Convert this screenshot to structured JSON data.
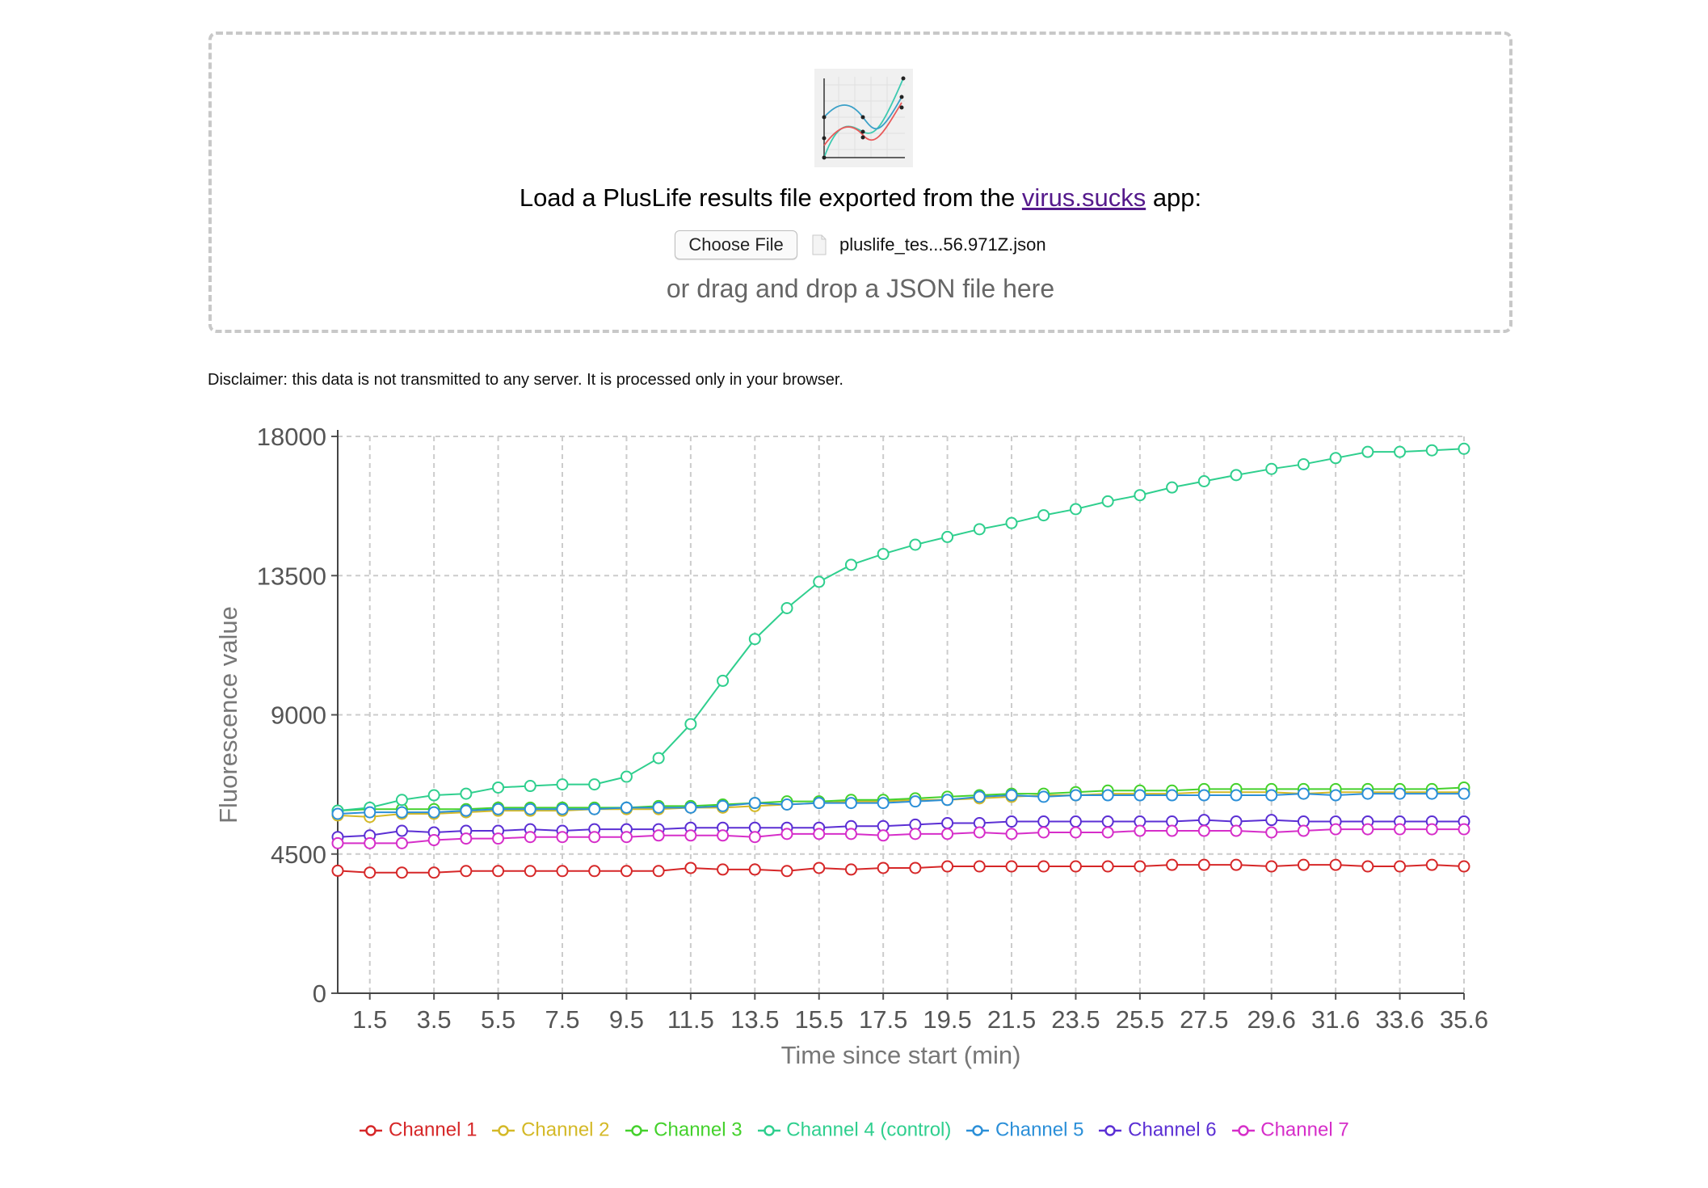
{
  "upload": {
    "prompt_before_link": "Load a PlusLife results file exported from the ",
    "link_text": "virus.sucks",
    "prompt_after_link": " app:",
    "choose_file_label": "Choose File",
    "file_name": "pluslife_tes...56.971Z.json",
    "drag_drop_text": "or drag and drop a JSON file here"
  },
  "disclaimer": "Disclaimer: this data is not transmitted to any server. It is processed only in your browser.",
  "chart_data": {
    "type": "line",
    "xlabel": "Time since start (min)",
    "ylabel": "Fluorescence value",
    "ylim": [
      0,
      18000
    ],
    "yticks": [
      0,
      4500,
      9000,
      13500,
      18000
    ],
    "xlim": [
      0.5,
      35.6
    ],
    "xtick_labels": [
      "1.5",
      "3.5",
      "5.5",
      "7.5",
      "9.5",
      "11.5",
      "13.5",
      "15.5",
      "17.5",
      "19.5",
      "21.5",
      "23.5",
      "25.5",
      "27.5",
      "29.6",
      "31.6",
      "33.6",
      "35.6"
    ],
    "grid": true,
    "legend_position": "bottom",
    "x": [
      0.5,
      1.5,
      2.5,
      3.5,
      4.5,
      5.5,
      6.5,
      7.5,
      8.5,
      9.5,
      10.5,
      11.5,
      12.5,
      13.5,
      14.5,
      15.5,
      16.5,
      17.5,
      18.5,
      19.5,
      20.5,
      21.5,
      22.5,
      23.5,
      24.5,
      25.5,
      26.5,
      27.5,
      28.5,
      29.6,
      30.6,
      31.6,
      32.6,
      33.6,
      34.6,
      35.6
    ],
    "series": [
      {
        "name": "Channel 1",
        "color": "#d62728",
        "values": [
          3960,
          3900,
          3900,
          3900,
          3950,
          3950,
          3950,
          3950,
          3950,
          3950,
          3950,
          4050,
          4000,
          4000,
          3950,
          4050,
          4000,
          4050,
          4050,
          4100,
          4100,
          4100,
          4100,
          4100,
          4100,
          4100,
          4150,
          4150,
          4150,
          4100,
          4150,
          4150,
          4100,
          4100,
          4150,
          4100
        ]
      },
      {
        "name": "Channel 2",
        "color": "#d4b927",
        "values": [
          5750,
          5700,
          5800,
          5800,
          5850,
          5900,
          5900,
          5900,
          5950,
          5950,
          5950,
          6000,
          6000,
          6050,
          6100,
          6150,
          6200,
          6200,
          6250,
          6250,
          6300,
          6350,
          6400,
          6400,
          6450,
          6450,
          6450,
          6500,
          6500,
          6500,
          6450,
          6500,
          6500,
          6500,
          6500,
          6500
        ]
      },
      {
        "name": "Channel 3",
        "color": "#44d12c",
        "values": [
          5900,
          5950,
          5950,
          5950,
          5950,
          6000,
          6000,
          6000,
          6000,
          6000,
          6050,
          6050,
          6100,
          6150,
          6200,
          6200,
          6250,
          6250,
          6300,
          6350,
          6400,
          6450,
          6450,
          6500,
          6550,
          6550,
          6550,
          6600,
          6600,
          6600,
          6600,
          6600,
          6600,
          6600,
          6600,
          6650
        ]
      },
      {
        "name": "Channel 4 (control)",
        "color": "#2fcf8e",
        "values": [
          5900,
          6000,
          6250,
          6400,
          6450,
          6650,
          6700,
          6750,
          6750,
          7000,
          7600,
          8700,
          10100,
          11450,
          12450,
          13300,
          13850,
          14200,
          14500,
          14750,
          15000,
          15200,
          15450,
          15650,
          15900,
          16100,
          16350,
          16550,
          16750,
          16950,
          17100,
          17300,
          17500,
          17500,
          17550,
          17600
        ]
      },
      {
        "name": "Channel 5",
        "color": "#2b8fd8",
        "values": [
          5800,
          5850,
          5850,
          5850,
          5900,
          5950,
          5950,
          5950,
          5950,
          6000,
          6000,
          6000,
          6050,
          6150,
          6100,
          6150,
          6150,
          6150,
          6200,
          6250,
          6350,
          6400,
          6350,
          6400,
          6400,
          6400,
          6400,
          6400,
          6400,
          6400,
          6450,
          6400,
          6450,
          6450,
          6450,
          6450
        ]
      },
      {
        "name": "Channel 6",
        "color": "#5b2fd4",
        "values": [
          5050,
          5100,
          5250,
          5200,
          5250,
          5250,
          5300,
          5250,
          5300,
          5300,
          5300,
          5350,
          5350,
          5350,
          5350,
          5350,
          5400,
          5400,
          5450,
          5500,
          5500,
          5550,
          5550,
          5550,
          5550,
          5550,
          5550,
          5600,
          5550,
          5600,
          5550,
          5550,
          5550,
          5550,
          5550,
          5550
        ]
      },
      {
        "name": "Channel 7",
        "color": "#d62ec9",
        "values": [
          4850,
          4850,
          4850,
          4950,
          5000,
          5000,
          5050,
          5050,
          5050,
          5050,
          5100,
          5100,
          5100,
          5050,
          5150,
          5150,
          5150,
          5100,
          5150,
          5150,
          5200,
          5150,
          5200,
          5200,
          5200,
          5250,
          5250,
          5250,
          5250,
          5200,
          5250,
          5300,
          5300,
          5300,
          5300,
          5300
        ]
      }
    ]
  }
}
